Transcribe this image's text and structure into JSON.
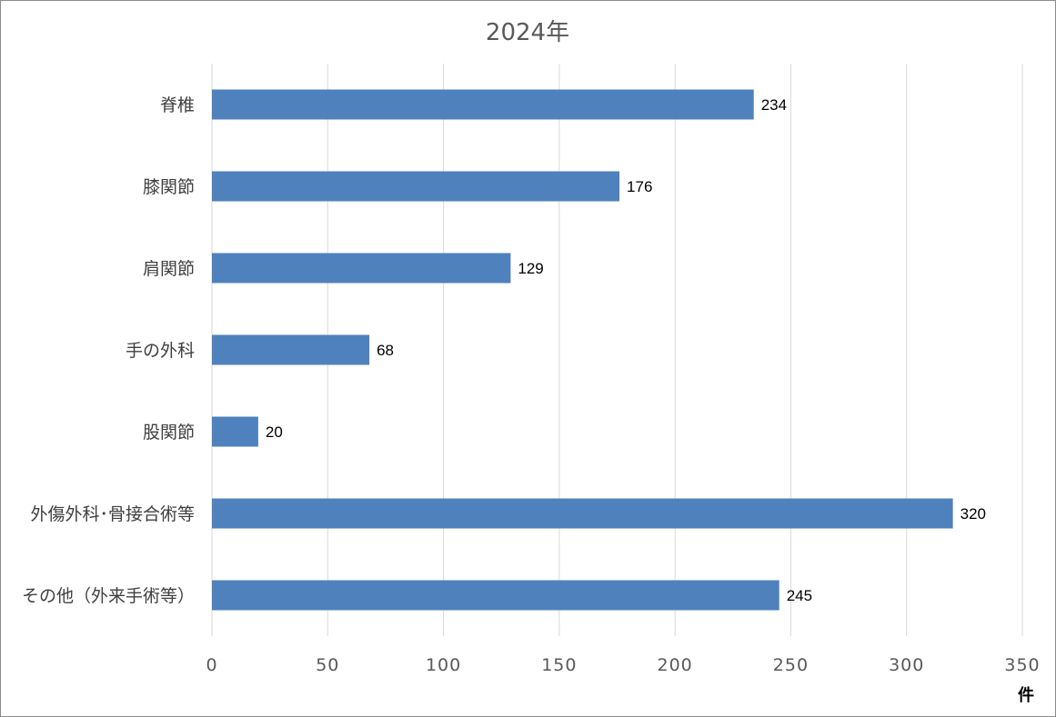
{
  "chart_data": {
    "type": "bar",
    "orientation": "horizontal",
    "title": "2024年",
    "categories": [
      "脊椎",
      "膝関節",
      "肩関節",
      "手の外科",
      "股関節",
      "外傷外科･骨接合術等",
      "その他（外来手術等）"
    ],
    "values": [
      234,
      176,
      129,
      68,
      20,
      320,
      245
    ],
    "xlim": [
      0,
      350
    ],
    "xticks": [
      0,
      50,
      100,
      150,
      200,
      250,
      300,
      350
    ],
    "xunit": "件",
    "grid": true,
    "bar_color": "#4f81bd"
  }
}
